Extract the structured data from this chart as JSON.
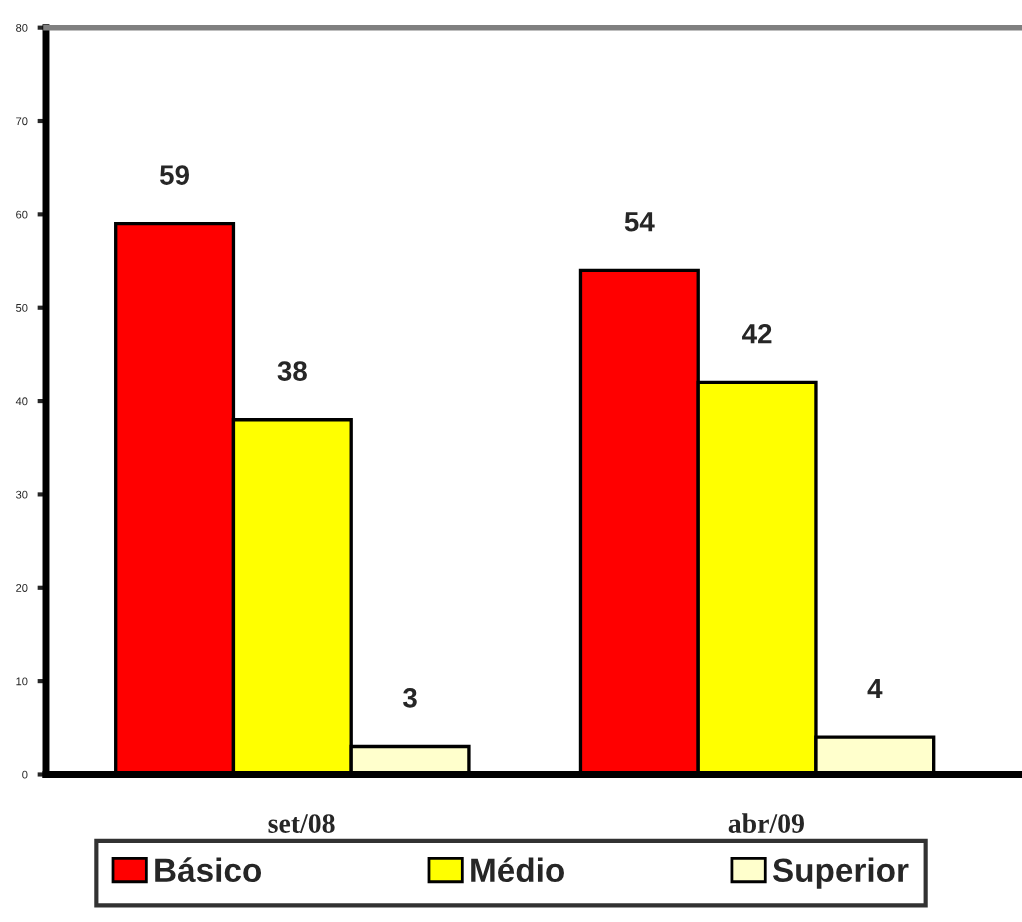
{
  "chart_data": {
    "type": "bar",
    "categories": [
      "set/08",
      "abr/09"
    ],
    "series": [
      {
        "name": "Básico",
        "color": "#ff0000",
        "values": [
          59,
          54
        ]
      },
      {
        "name": "Médio",
        "color": "#ffff00",
        "values": [
          38,
          42
        ]
      },
      {
        "name": "Superior",
        "color": "#ffffcc",
        "values": [
          3,
          4
        ]
      }
    ],
    "ylim": [
      0,
      80
    ],
    "yticks": [
      0,
      10,
      20,
      30,
      40,
      50,
      60,
      70,
      80
    ],
    "data_labels": true,
    "grid": false,
    "legend": "bottom"
  }
}
